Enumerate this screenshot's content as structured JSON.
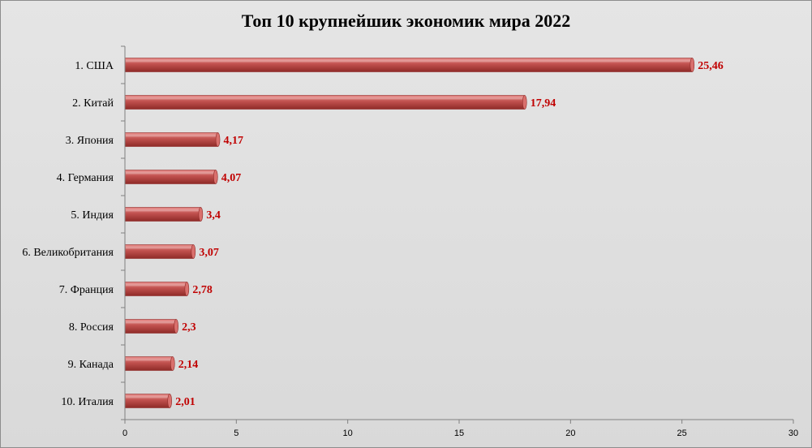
{
  "colors": {
    "bar_main": "#c0504d",
    "bar_light": "#e88a87",
    "bar_dark": "#8f2b28",
    "bar_top": "#d9706d",
    "data_label": "#c00000",
    "axis": "#808080"
  },
  "chart_data": {
    "type": "bar",
    "orientation": "horizontal",
    "title": "Топ 10 крупнейшик экономик мира 2022",
    "categories": [
      "1. США",
      "2. Китай",
      "3. Япония",
      "4. Германия",
      "5. Индия",
      "6. Великобритания",
      "7. Франция",
      "8. Россия",
      "9. Канада",
      "10. Италия"
    ],
    "values": [
      25.46,
      17.94,
      4.17,
      4.07,
      3.4,
      3.07,
      2.78,
      2.3,
      2.14,
      2.01
    ],
    "data_labels": [
      "25,46",
      "17,94",
      "4,17",
      "4,07",
      "3,4",
      "3,07",
      "2,78",
      "2,3",
      "2,14",
      "2,01"
    ],
    "xlim": [
      0,
      30
    ],
    "x_ticks": [
      0,
      5,
      10,
      15,
      20,
      25,
      30
    ],
    "x_tick_labels": [
      "0",
      "5",
      "10",
      "15",
      "20",
      "25",
      "30"
    ],
    "xlabel": "",
    "ylabel": "",
    "grid": false,
    "legend": "none"
  }
}
